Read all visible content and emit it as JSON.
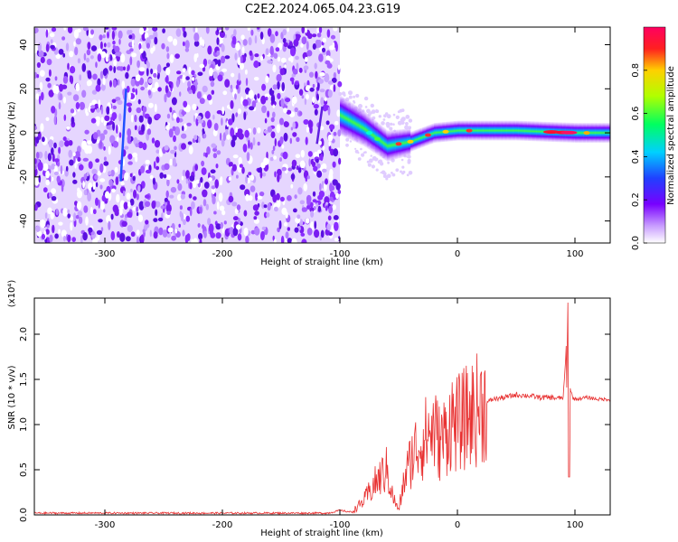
{
  "figure_title": "C2E2.2024.065.04.23.G19",
  "chart_data": [
    {
      "type": "heatmap",
      "title": "",
      "xlabel": "Height of straight line (km)",
      "ylabel": "Frequency (Hz)",
      "xlim": [
        -360,
        130
      ],
      "ylim": [
        -50,
        48
      ],
      "xticks": [
        -300,
        -200,
        -100,
        0,
        100
      ],
      "xtick_labels": [
        "-300",
        "-200",
        "-100",
        "0",
        "100"
      ],
      "yticks": [
        40,
        20,
        0,
        -20,
        -40
      ],
      "ytick_labels": [
        "40",
        "20",
        "0",
        "-20",
        "-40"
      ],
      "colorbar": {
        "label": "Normalized spectral amplitude",
        "range": [
          0,
          1
        ],
        "ticks": [
          0.0,
          0.2,
          0.4,
          0.6,
          0.8
        ],
        "tick_labels": [
          "0.0",
          "0.2",
          "0.4",
          "0.6",
          "0.8"
        ],
        "colormap": "rainbow (white-purple-blue-cyan-green-yellow-red-magenta)"
      },
      "regions": [
        {
          "description": "noise",
          "x_range": [
            -360,
            -100
          ],
          "freq_range": [
            -50,
            48
          ],
          "amplitude": 0.1
        },
        {
          "description": "signal",
          "x_range": [
            -100,
            130
          ],
          "freq_center": [
            {
              "x": -100,
              "f": 8
            },
            {
              "x": -80,
              "f": 2
            },
            {
              "x": -60,
              "f": -6
            },
            {
              "x": -40,
              "f": -4
            },
            {
              "x": -20,
              "f": 0
            },
            {
              "x": 0,
              "f": 1
            },
            {
              "x": 50,
              "f": 1
            },
            {
              "x": 100,
              "f": 0
            },
            {
              "x": 130,
              "f": 0
            }
          ],
          "amplitude": 0.6,
          "peak_amplitude_at_x": [
            80,
            95
          ]
        },
        {
          "description": "streaks",
          "points": [
            {
              "x": -285,
              "f_min": -22,
              "f_max": 20
            },
            {
              "x": -118,
              "f_min": -5,
              "f_max": 12
            }
          ]
        }
      ]
    },
    {
      "type": "line",
      "title": "",
      "xlabel": "Height of straight line (km)",
      "ylabel": "SNR (10 * v/v)",
      "yscale_label": "(x10⁴)",
      "xlim": [
        -360,
        130
      ],
      "ylim": [
        0,
        2.4
      ],
      "xticks": [
        -300,
        -200,
        -100,
        0,
        100
      ],
      "xtick_labels": [
        "-300",
        "-200",
        "-100",
        "0",
        "100"
      ],
      "yticks": [
        0.0,
        0.5,
        1.0,
        1.5,
        2.0
      ],
      "ytick_labels": [
        "0.0",
        "0.5",
        "1.0",
        "1.5",
        "2.0"
      ],
      "line_color": "#e83030",
      "series": [
        {
          "name": "",
          "x": [
            -360,
            -300,
            -200,
            -110,
            -100,
            -90,
            -80,
            -70,
            -60,
            -55,
            -50,
            -45,
            -40,
            -35,
            -30,
            -25,
            -20,
            -15,
            -10,
            -5,
            0,
            10,
            20,
            30,
            40,
            50,
            60,
            70,
            80,
            85,
            90,
            92,
            94,
            95,
            96,
            98,
            100,
            110,
            120,
            130
          ],
          "y": [
            0.02,
            0.02,
            0.02,
            0.02,
            0.05,
            0.03,
            0.15,
            0.35,
            0.5,
            0.2,
            0.05,
            0.4,
            0.6,
            0.75,
            0.8,
            0.9,
            0.95,
            0.8,
            0.9,
            1.05,
            1.0,
            1.1,
            1.2,
            1.28,
            1.3,
            1.33,
            1.32,
            1.3,
            1.3,
            1.29,
            1.3,
            1.7,
            2.35,
            0.45,
            1.4,
            1.3,
            1.28,
            1.3,
            1.28,
            1.28
          ]
        }
      ]
    }
  ]
}
